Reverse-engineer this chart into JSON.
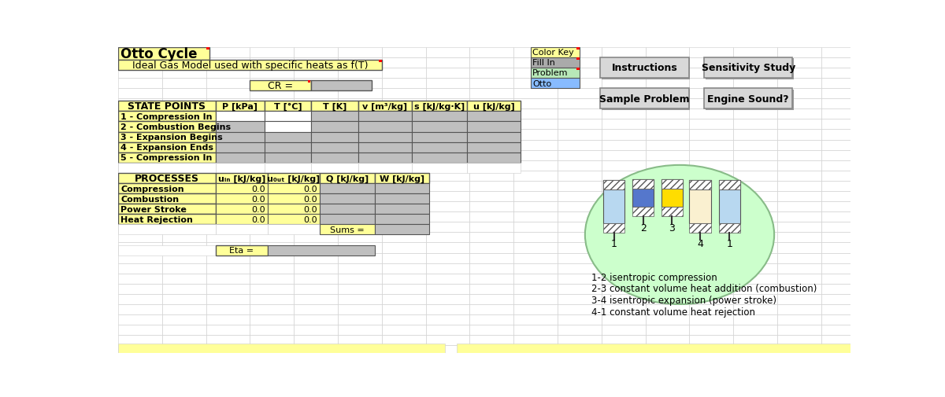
{
  "title": "Otto Cycle",
  "subtitle": "Ideal Gas Model used with specific heats as f(T)",
  "color_key_label": "Color Key",
  "cr_label": "CR =",
  "state_points_header": "STATE POINTS",
  "state_cols": [
    "P [kPa]",
    "T [°C]",
    "T [K]",
    "v [m³/kg]",
    "s [kJ/kg·K]",
    "u [kJ/kg]"
  ],
  "state_rows": [
    "1 - Compression In",
    "2 - Combustion Begins",
    "3 - Expansion Begins",
    "4 - Expansion Ends",
    "5 - Compression In"
  ],
  "processes_header": "PROCESSES",
  "process_rows": [
    "Compression",
    "Combustion",
    "Power Stroke",
    "Heat Rejection"
  ],
  "sums_label": "Sums =",
  "eta_label": "Eta =",
  "cycle_labels": [
    "1",
    "2",
    "3",
    "4",
    "1"
  ],
  "cycle_descriptions": [
    "1-2 isentropic compression",
    "2-3 constant volume heat addition (combustion)",
    "3-4 isentropic expansion (power stroke)",
    "4-1 constant volume heat rejection"
  ],
  "bg_color": "#ffffff",
  "cell_bg": "#f2f2f2",
  "yellow_fill": "#ffff99",
  "gray_fill": "#bfbfbf",
  "green_ellipse": "#ccffcc",
  "light_blue_cyl": "#b8d8f0",
  "blue_cyl": "#5577cc",
  "yellow_cyl": "#ffdd00",
  "cream_cyl": "#faf0d0",
  "color_key_fill_in": "#aaaaaa",
  "color_key_problem": "#b8e8b8",
  "color_key_otto": "#88bbff",
  "btn_color": "#d8d8d8",
  "grid_color": "#cccccc",
  "border_color": "#888888"
}
